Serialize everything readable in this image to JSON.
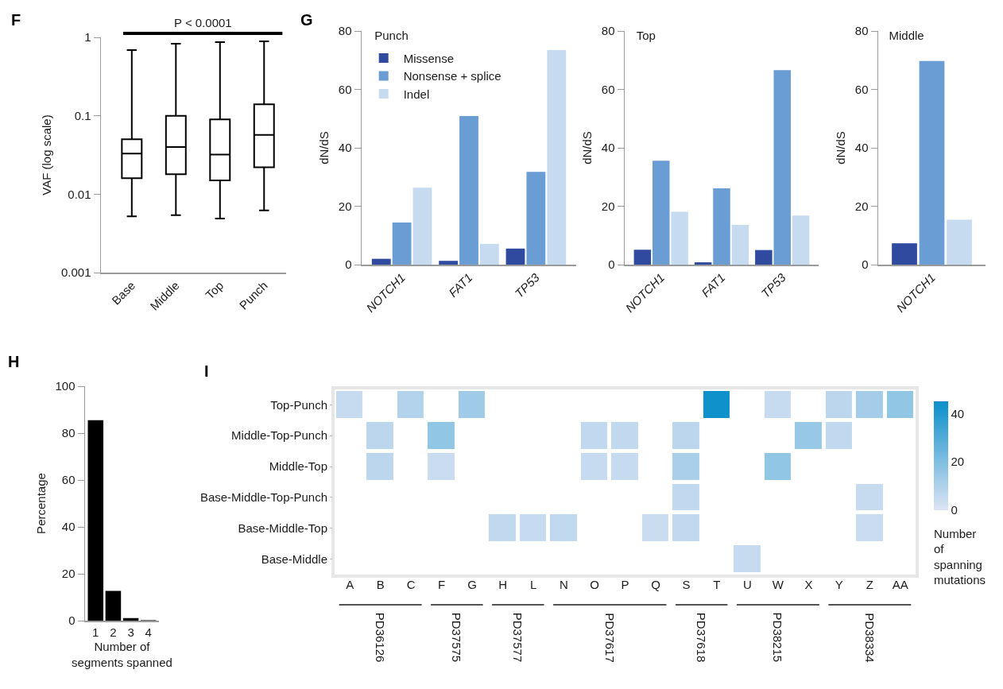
{
  "chart_data": [
    {
      "type": "box",
      "categories": [
        "Base",
        "Middle",
        "Top",
        "Punch"
      ],
      "ylabel": "VAF (log scale)",
      "log": true,
      "ylim": [
        0.001,
        1
      ],
      "yticks": [
        0.001,
        0.01,
        0.1,
        1
      ],
      "color": "#000000",
      "boxes": [
        {
          "low": 0.0052,
          "q1": 0.016,
          "median": 0.033,
          "q3": 0.05,
          "high": 0.69
        },
        {
          "low": 0.0054,
          "q1": 0.018,
          "median": 0.04,
          "q3": 0.1,
          "high": 0.83
        },
        {
          "low": 0.0049,
          "q1": 0.015,
          "median": 0.032,
          "q3": 0.09,
          "high": 0.87
        },
        {
          "low": 0.0062,
          "q1": 0.022,
          "median": 0.057,
          "q3": 0.14,
          "high": 0.89
        }
      ],
      "annotations": [
        "F",
        "P < 0.0001"
      ]
    },
    {
      "type": "bar",
      "title": "Punch",
      "categories": [
        "NOTCH1",
        "FAT1",
        "TP53"
      ],
      "ylabel": "dN/dS",
      "ylim": [
        0,
        80
      ],
      "yticks": [
        0,
        20,
        40,
        60,
        80
      ],
      "legend": "top left",
      "series": [
        {
          "name": "Missense",
          "color": "#2f4a9e",
          "values": [
            2.0,
            1.3,
            5.5
          ]
        },
        {
          "name": "Nonsense + splice",
          "color": "#6a9dd4",
          "values": [
            14.4,
            50.9,
            31.8
          ]
        },
        {
          "name": "Indel",
          "color": "#c6dbf0",
          "values": [
            26.3,
            7.1,
            73.5
          ]
        }
      ],
      "annotations": [
        "G"
      ]
    },
    {
      "type": "bar",
      "title": "Top",
      "categories": [
        "NOTCH1",
        "FAT1",
        "TP53"
      ],
      "ylabel": "dN/dS",
      "ylim": [
        0,
        80
      ],
      "yticks": [
        0,
        20,
        40,
        60,
        80
      ],
      "series": [
        {
          "color": "#2f4a9e",
          "values": [
            5.1,
            0.8,
            5.0
          ]
        },
        {
          "color": "#6a9dd4",
          "values": [
            35.6,
            26.1,
            66.6
          ]
        },
        {
          "color": "#c6dbf0",
          "values": [
            18.1,
            13.6,
            16.8
          ]
        }
      ]
    },
    {
      "type": "bar",
      "title": "Middle",
      "categories": [
        "NOTCH1"
      ],
      "ylabel": "dN/dS",
      "ylim": [
        0,
        80
      ],
      "yticks": [
        0,
        20,
        40,
        60,
        80
      ],
      "series": [
        {
          "color": "#2f4a9e",
          "values": [
            7.3
          ]
        },
        {
          "color": "#6a9dd4",
          "values": [
            69.7
          ]
        },
        {
          "color": "#c6dbf0",
          "values": [
            15.4
          ]
        }
      ]
    },
    {
      "type": "bar",
      "categories": [
        "1",
        "2",
        "3",
        "4"
      ],
      "values": [
        85.5,
        12.7,
        1.1,
        0.2
      ],
      "color": "#000000",
      "xlabel": "Number of segments spanned",
      "ylabel": "Percentage",
      "ylim": [
        0,
        100
      ],
      "yticks": [
        0,
        20,
        40,
        60,
        80,
        100
      ],
      "annotations": [
        "H"
      ]
    },
    {
      "type": "heatmap",
      "categories": [
        "A",
        "B",
        "C",
        "F",
        "G",
        "H",
        "L",
        "N",
        "O",
        "P",
        "Q",
        "S",
        "T",
        "U",
        "W",
        "X",
        "Y",
        "Z",
        "AA"
      ],
      "y_categories": [
        "Top-Punch",
        "Middle-Top-Punch",
        "Middle-Top",
        "Base-Middle-Top-Punch",
        "Base-Middle-Top",
        "Base-Middle"
      ],
      "cells": [
        [
          5,
          null,
          9,
          null,
          13,
          null,
          null,
          null,
          null,
          null,
          null,
          null,
          44,
          null,
          5,
          null,
          7,
          12,
          16
        ],
        [
          null,
          7,
          null,
          16,
          null,
          null,
          null,
          null,
          6,
          6,
          null,
          7,
          null,
          null,
          null,
          15,
          6,
          null,
          null
        ],
        [
          null,
          7,
          null,
          4,
          null,
          null,
          null,
          null,
          5,
          5,
          null,
          11,
          null,
          null,
          16,
          null,
          null,
          null,
          null
        ],
        [
          null,
          null,
          null,
          null,
          null,
          null,
          null,
          null,
          null,
          null,
          null,
          6,
          null,
          null,
          null,
          null,
          null,
          5,
          null
        ],
        [
          null,
          null,
          null,
          null,
          null,
          6,
          5,
          6,
          null,
          null,
          4,
          6,
          null,
          null,
          null,
          null,
          null,
          4,
          null
        ],
        [
          null,
          null,
          null,
          null,
          null,
          null,
          null,
          null,
          null,
          null,
          null,
          null,
          null,
          5,
          null,
          null,
          null,
          null,
          null
        ]
      ],
      "color": "#0a8fca",
      "clim": [
        0,
        45
      ],
      "cticks": [
        0,
        20,
        40
      ],
      "clabel": "Number of spanning mutations",
      "annotations": [
        "I",
        "PD36126",
        "PD37575",
        "PD37577",
        "PD37617",
        "PD37618",
        "PD38215",
        "PD38334"
      ]
    }
  ]
}
